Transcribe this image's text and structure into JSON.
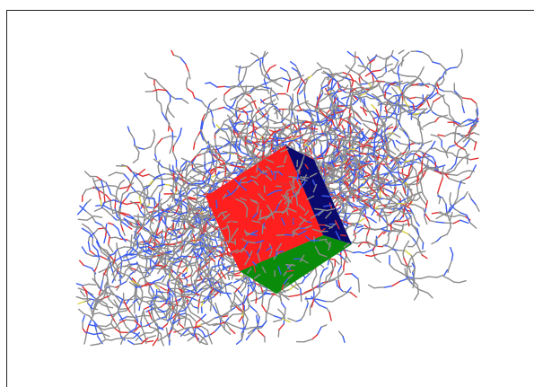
{
  "viewer": {
    "background": "#ffffff",
    "frame_color": "#222222"
  },
  "molecule": {
    "representation": "sticks",
    "element_colors": {
      "carbon": "#8c8c8c",
      "nitrogen": "#3a5cf0",
      "oxygen": "#e03030",
      "sulfur": "#d8d040"
    }
  },
  "box": {
    "faces": [
      {
        "name": "front",
        "color": "#ff1f1f"
      },
      {
        "name": "bottom",
        "color": "#0a8c0a"
      },
      {
        "name": "side",
        "color": "#0a0a6e"
      }
    ]
  }
}
